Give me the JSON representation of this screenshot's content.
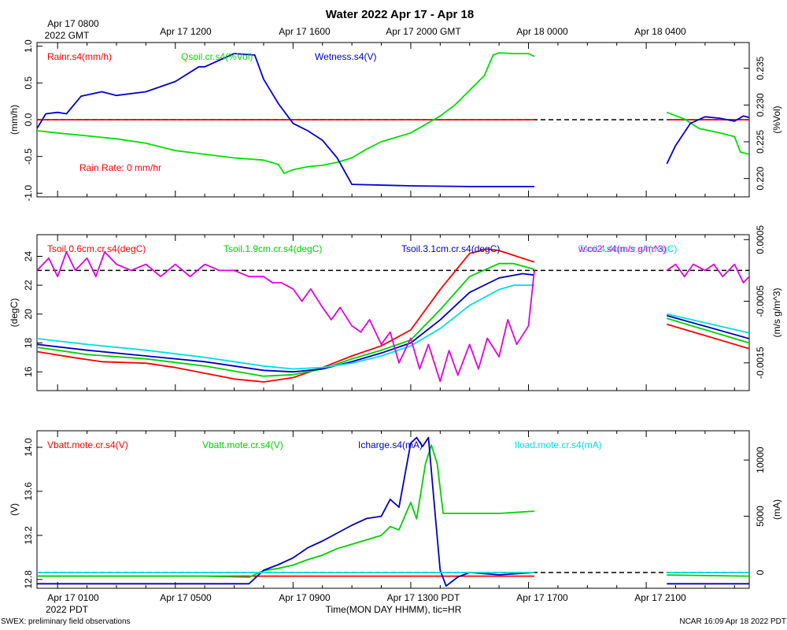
{
  "page": {
    "title": "Water 2022 Apr 17 - Apr 18",
    "top_time_labels": [
      "Apr 17 0800",
      "Apr 17 1200",
      "Apr 17 1600",
      "Apr 17 2000 GMT",
      "Apr 18 0000",
      "Apr 18 0400"
    ],
    "top_time_sublabel": "2022 GMT",
    "bottom_time_labels": [
      "Apr 17 0100",
      "Apr 17 0500",
      "Apr 17 0900",
      "Apr 17 1300 PDT",
      "Apr 17 1700",
      "Apr 17 2100"
    ],
    "bottom_time_sublabel": "2022 PDT",
    "xlabel": "Time(MON DAY HHMM), tic=HR",
    "footer_left": "SWEX: preliminary field observations",
    "footer_right": "NCAR 16:09 Apr 18 2022 PDT"
  },
  "chart_data": [
    {
      "type": "line",
      "x_unit": "hours since Apr 17 0000 PDT",
      "xlim": [
        -0.7,
        23.5
      ],
      "left_axis": {
        "label": "(mm/h)",
        "ylim": [
          -1.05,
          1.05
        ],
        "ticks": [
          "-1.0",
          "-0.5",
          "0.0",
          "0.5",
          "1.0"
        ]
      },
      "right_axis": {
        "label": "(%Vol)",
        "ylim": [
          0.2175,
          0.2385
        ],
        "ticks": [
          "0.220",
          "0.225",
          "0.230",
          "0.235"
        ]
      },
      "legend": [
        "Rainr.s4(mm/h)",
        "Qsoil.cr.s4(%Vol)",
        "Wetness.s4(V)"
      ],
      "annotation": "Rain Rate: 0 mm/hr",
      "reference_line": {
        "axis": "left",
        "y": 0.0
      },
      "series": [
        {
          "name": "Rainr.s4(mm/h)",
          "axis": "left",
          "color": "#ff0000",
          "segments": [
            {
              "x": [
                -0.7,
                16.2
              ],
              "y": [
                0.0,
                0.0
              ]
            },
            {
              "x": [
                20.7,
                23.5
              ],
              "y": [
                0.0,
                0.0
              ]
            }
          ]
        },
        {
          "name": "Qsoil.cr.s4(%Vol)",
          "axis": "right",
          "color": "#00e000",
          "segments": [
            {
              "x": [
                -0.7,
                0.0,
                1.0,
                2.0,
                3.0,
                4.0,
                5.0,
                6.0,
                7.0,
                7.5,
                7.7,
                8.0,
                8.5,
                9.0,
                9.5,
                10.0,
                10.5,
                11.0,
                12.0,
                13.0,
                13.5,
                14.0,
                14.5,
                14.8,
                15.0,
                15.5,
                16.0,
                16.2
              ],
              "y": [
                0.2265,
                0.2262,
                0.2258,
                0.2254,
                0.2248,
                0.2238,
                0.2233,
                0.2228,
                0.2225,
                0.2219,
                0.2207,
                0.2212,
                0.2216,
                0.2218,
                0.2222,
                0.2228,
                0.224,
                0.225,
                0.2262,
                0.2285,
                0.23,
                0.232,
                0.234,
                0.2368,
                0.2371,
                0.237,
                0.237,
                0.2366
              ]
            },
            {
              "x": [
                20.7,
                21.3,
                21.8,
                22.5,
                23.0,
                23.2,
                23.5
              ],
              "y": [
                0.229,
                0.2281,
                0.2268,
                0.2262,
                0.2257,
                0.2236,
                0.2233
              ]
            }
          ]
        },
        {
          "name": "Wetness.s4(V)",
          "axis": "left",
          "color": "#0000d0",
          "segments": [
            {
              "x": [
                -0.7,
                -0.4,
                0.0,
                0.3,
                0.8,
                1.5,
                2.0,
                3.0,
                4.0,
                4.8,
                5.0,
                6.0,
                6.7,
                7.0,
                7.5,
                8.0,
                8.5,
                9.0,
                9.5,
                10.0,
                12.0,
                14.0,
                16.2
              ],
              "y": [
                -0.12,
                0.08,
                0.1,
                0.08,
                0.32,
                0.38,
                0.33,
                0.38,
                0.52,
                0.72,
                0.72,
                0.9,
                0.88,
                0.55,
                0.22,
                -0.05,
                -0.15,
                -0.28,
                -0.52,
                -0.88,
                -0.9,
                -0.91,
                -0.91
              ]
            },
            {
              "x": [
                20.7,
                21.0,
                21.5,
                22.0,
                22.5,
                23.0,
                23.3,
                23.5
              ],
              "y": [
                -0.6,
                -0.35,
                -0.05,
                0.04,
                0.02,
                -0.02,
                0.05,
                0.03
              ]
            }
          ]
        }
      ]
    },
    {
      "type": "line",
      "x_unit": "hours since Apr 17 0000 PDT",
      "xlim": [
        -0.7,
        23.5
      ],
      "left_axis": {
        "label": "(degC)",
        "ylim": [
          14.7,
          25.5
        ],
        "ticks": [
          "16",
          "18",
          "20",
          "22",
          "24"
        ]
      },
      "right_axis": {
        "label": "(m/s g/m^3)",
        "ylim": [
          -0.00195,
          0.00058
        ],
        "ticks": [
          "-0.0015",
          "-0.0005",
          "0.0005"
        ]
      },
      "legend": [
        "Tsoil.0.6cm.cr.s4(degC)",
        "Tsoil.1.9cm.cr.s4(degC)",
        "Tsoil.3.1cm.cr.s4(degC)",
        "Tsoil.4.4cm.cr.s4(degC)",
        "w'co2'.s4(m/s g/m^3)"
      ],
      "reference_line": {
        "axis": "right",
        "y": 0.0
      },
      "series": [
        {
          "name": "Tsoil.0.6cm.cr.s4(degC)",
          "axis": "left",
          "color": "#ff0000",
          "segments": [
            {
              "x": [
                -0.7,
                0.5,
                1.5,
                3.0,
                4.0,
                5.0,
                6.0,
                7.0,
                8.0,
                9.0,
                10.0,
                11.0,
                12.0,
                13.0,
                14.0,
                14.6,
                15.0,
                16.2
              ],
              "y": [
                17.4,
                17.0,
                16.7,
                16.6,
                16.3,
                15.9,
                15.5,
                15.3,
                15.6,
                16.3,
                17.1,
                17.8,
                18.9,
                21.7,
                24.2,
                24.5,
                24.4,
                23.6
              ]
            },
            {
              "x": [
                20.7,
                23.5
              ],
              "y": [
                19.3,
                17.6
              ]
            }
          ]
        },
        {
          "name": "Tsoil.1.9cm.cr.s4(degC)",
          "axis": "left",
          "color": "#00d000",
          "segments": [
            {
              "x": [
                -0.7,
                1.0,
                3.0,
                5.0,
                7.0,
                8.0,
                9.0,
                10.0,
                11.0,
                12.0,
                13.0,
                14.0,
                15.0,
                15.5,
                16.2
              ],
              "y": [
                17.7,
                17.2,
                16.9,
                16.4,
                15.7,
                15.8,
                16.2,
                16.9,
                17.5,
                18.2,
                20.3,
                22.6,
                23.5,
                23.5,
                23.1
              ]
            },
            {
              "x": [
                20.7,
                23.5
              ],
              "y": [
                19.7,
                18.0
              ]
            }
          ]
        },
        {
          "name": "Tsoil.3.1cm.cr.s4(degC)",
          "axis": "left",
          "color": "#0000c0",
          "segments": [
            {
              "x": [
                -0.7,
                1.0,
                3.0,
                5.0,
                7.0,
                8.0,
                9.0,
                10.0,
                11.0,
                12.0,
                13.0,
                14.0,
                15.0,
                15.8,
                16.2
              ],
              "y": [
                17.9,
                17.5,
                17.1,
                16.7,
                16.1,
                16.0,
                16.2,
                16.7,
                17.3,
                18.0,
                19.6,
                21.5,
                22.5,
                22.8,
                22.7
              ]
            },
            {
              "x": [
                20.7,
                23.5
              ],
              "y": [
                19.9,
                18.3
              ]
            }
          ]
        },
        {
          "name": "Tsoil.4.4cm.cr.s4(degC)",
          "axis": "left",
          "color": "#00e0e0",
          "segments": [
            {
              "x": [
                -0.7,
                1.0,
                3.0,
                5.0,
                7.0,
                8.0,
                9.0,
                10.0,
                11.0,
                12.0,
                13.0,
                14.0,
                15.0,
                15.5,
                16.2
              ],
              "y": [
                18.3,
                17.9,
                17.5,
                17.0,
                16.4,
                16.2,
                16.3,
                16.6,
                17.1,
                17.8,
                19.0,
                20.6,
                21.7,
                22.0,
                22.0
              ]
            },
            {
              "x": [
                20.7,
                23.5
              ],
              "y": [
                20.0,
                18.7
              ]
            }
          ]
        },
        {
          "name": "w'co2'.s4(m/s g/m^3)",
          "axis": "right",
          "color": "#e000e0",
          "segments": [
            {
              "x": [
                -0.7,
                -0.3,
                0.0,
                0.3,
                0.6,
                1.0,
                1.3,
                1.6,
                2.0,
                2.5,
                3.0,
                3.5,
                4.0,
                4.5,
                5.0,
                5.5,
                6.0,
                6.5,
                7.0,
                7.3,
                7.6,
                8.0,
                8.3,
                8.6,
                9.0,
                9.3,
                9.6,
                10.0,
                10.3,
                10.6,
                11.0,
                11.3,
                11.6,
                12.0,
                12.3,
                12.6,
                13.0,
                13.3,
                13.6,
                14.0,
                14.3,
                14.6,
                15.0,
                15.3,
                15.6,
                16.0,
                16.2
              ],
              "y": [
                0.0,
                0.0002,
                -0.0001,
                0.0003,
                0.0,
                0.0002,
                -0.0001,
                0.0003,
                0.0001,
                0.0,
                0.0001,
                -0.0001,
                0.0001,
                -0.0001,
                0.0001,
                0.0,
                0.0,
                -0.0001,
                -0.0001,
                -0.0002,
                -0.0002,
                -0.0003,
                -0.0005,
                -0.0003,
                -0.0006,
                -0.0008,
                -0.0006,
                -0.0009,
                -0.001,
                -0.0008,
                -0.0012,
                -0.001,
                -0.0015,
                -0.0011,
                -0.0016,
                -0.0012,
                -0.0018,
                -0.0013,
                -0.0017,
                -0.0012,
                -0.0016,
                -0.0011,
                -0.0014,
                -0.0008,
                -0.0012,
                -0.0009,
                0.0
              ]
            },
            {
              "x": [
                20.7,
                21.0,
                21.3,
                21.6,
                22.0,
                22.3,
                22.6,
                23.0,
                23.3,
                23.5
              ],
              "y": [
                0.0,
                0.0001,
                -0.0001,
                0.0001,
                0.0,
                0.0001,
                -0.0001,
                0.0001,
                -0.0002,
                -0.0001
              ]
            }
          ]
        }
      ]
    },
    {
      "type": "line",
      "x_unit": "hours since Apr 17 0000 PDT",
      "xlim": [
        -0.7,
        23.5
      ],
      "left_axis": {
        "label": "(V)",
        "ylim": [
          12.72,
          14.15
        ],
        "ticks": [
          "12.8",
          "13.2",
          "13.6",
          "14.0"
        ]
      },
      "right_axis": {
        "label": "(mA)",
        "ylim": [
          -1400,
          12600
        ],
        "ticks": [
          "0",
          "5000",
          "10000"
        ]
      },
      "legend": [
        "Vbatt.mote.cr.s4(V)",
        "Vbatt.mote.cr.s4(V)",
        "Icharge.s4(mA)",
        "Iload.mote.cr.s4(mA)"
      ],
      "reference_line": {
        "axis": "right",
        "y": 0
      },
      "series": [
        {
          "name": "Vbatt.mote.cr.s4(V)",
          "axis": "left",
          "color": "#ff0000",
          "segments": [
            {
              "x": [
                -0.7,
                16.2
              ],
              "y": [
                12.83,
                12.83
              ]
            }
          ]
        },
        {
          "name": "Vbatt.mote.cr.s4(V)",
          "axis": "left",
          "color": "#00d000",
          "segments": [
            {
              "x": [
                -0.7,
                1.0,
                3.0,
                5.0,
                6.5,
                7.0,
                7.5,
                8.0,
                8.5,
                9.0,
                9.5,
                10.0,
                10.5,
                11.0,
                11.3,
                11.6,
                12.0,
                12.2,
                12.5,
                12.7,
                12.9,
                13.1,
                14.0,
                15.0,
                16.2
              ],
              "y": [
                12.83,
                12.83,
                12.83,
                12.83,
                12.82,
                12.88,
                12.9,
                12.93,
                12.98,
                13.02,
                13.08,
                13.12,
                13.16,
                13.2,
                13.28,
                13.25,
                13.5,
                13.35,
                13.85,
                14.02,
                13.85,
                13.4,
                13.4,
                13.4,
                13.42
              ]
            },
            {
              "x": [
                20.7,
                23.5
              ],
              "y": [
                12.84,
                12.83
              ]
            }
          ]
        },
        {
          "name": "Icharge.s4(mA)",
          "axis": "right",
          "color": "#0000c0",
          "segments": [
            {
              "x": [
                -0.7,
                1.0,
                3.0,
                5.0,
                6.5,
                7.0,
                7.5,
                8.0,
                8.5,
                9.0,
                9.5,
                10.0,
                10.5,
                11.0,
                11.3,
                11.6,
                12.0,
                12.2,
                12.4,
                12.6,
                12.8,
                13.0,
                13.2,
                13.6,
                14.0,
                15.0,
                16.2
              ],
              "y": [
                -1000,
                -1000,
                -1000,
                -1000,
                -1000,
                200,
                700,
                1300,
                2200,
                2800,
                3500,
                4200,
                4800,
                5000,
                6500,
                5800,
                11500,
                12000,
                11200,
                12000,
                6000,
                200,
                -1200,
                -400,
                0,
                -200,
                0
              ]
            },
            {
              "x": [
                20.7,
                23.5
              ],
              "y": [
                -1000,
                -1000
              ]
            }
          ]
        },
        {
          "name": "Iload.mote.cr.s4(mA)",
          "axis": "right",
          "color": "#00e0e0",
          "segments": [
            {
              "x": [
                -0.7,
                16.2
              ],
              "y": [
                0,
                0
              ]
            },
            {
              "x": [
                20.7,
                23.5
              ],
              "y": [
                0,
                0
              ]
            }
          ]
        }
      ]
    }
  ]
}
